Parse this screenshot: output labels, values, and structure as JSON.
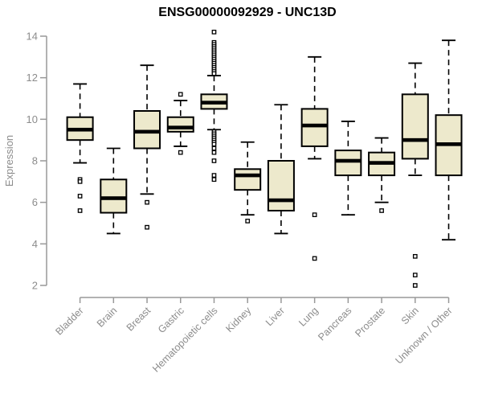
{
  "page": {
    "background": "#ffffff"
  },
  "chart_data": {
    "type": "boxplot",
    "title": "ENSG00000092929 - UNC13D",
    "ylabel": "Expression",
    "xlabel": "",
    "ylim": [
      2,
      14
    ],
    "yticks": [
      2,
      4,
      6,
      8,
      10,
      12,
      14
    ],
    "grid": false,
    "legend_position": "none",
    "whisker_line_style": "dashed",
    "outlier_marker": "open-square",
    "categories": [
      "Bladder",
      "Brain",
      "Breast",
      "Gastric",
      "Hematopoietic cells",
      "Kidney",
      "Liver",
      "Lung",
      "Pancreas",
      "Prostate",
      "Skin",
      "Unknown / Other"
    ],
    "series": [
      {
        "category": "Bladder",
        "whisker_low": 7.9,
        "q1": 9.0,
        "median": 9.5,
        "q3": 10.1,
        "whisker_high": 11.7,
        "outliers": [
          7.1,
          7.0,
          6.3,
          5.6
        ]
      },
      {
        "category": "Brain",
        "whisker_low": 4.5,
        "q1": 5.5,
        "median": 6.2,
        "q3": 7.1,
        "whisker_high": 8.6,
        "outliers": []
      },
      {
        "category": "Breast",
        "whisker_low": 6.4,
        "q1": 8.6,
        "median": 9.4,
        "q3": 10.4,
        "whisker_high": 12.6,
        "outliers": [
          6.0,
          4.8
        ]
      },
      {
        "category": "Gastric",
        "whisker_low": 8.7,
        "q1": 9.4,
        "median": 9.6,
        "q3": 10.1,
        "whisker_high": 10.9,
        "outliers": [
          11.2,
          8.4
        ]
      },
      {
        "category": "Hematopoietic cells",
        "whisker_low": 9.5,
        "q1": 10.5,
        "median": 10.8,
        "q3": 11.2,
        "whisker_high": 12.1,
        "outliers": [
          14.2,
          13.7,
          13.6,
          13.5,
          13.4,
          13.3,
          13.2,
          13.1,
          13.0,
          12.9,
          12.8,
          12.7,
          12.6,
          12.5,
          12.4,
          12.3,
          12.2,
          9.4,
          9.3,
          9.2,
          9.1,
          9.0,
          8.9,
          8.8,
          8.6,
          8.4,
          8.0,
          7.3,
          7.1
        ]
      },
      {
        "category": "Kidney",
        "whisker_low": 5.4,
        "q1": 6.6,
        "median": 7.3,
        "q3": 7.6,
        "whisker_high": 8.9,
        "outliers": [
          5.1
        ]
      },
      {
        "category": "Liver",
        "whisker_low": 4.5,
        "q1": 5.6,
        "median": 6.1,
        "q3": 8.0,
        "whisker_high": 10.7,
        "outliers": []
      },
      {
        "category": "Lung",
        "whisker_low": 8.1,
        "q1": 8.7,
        "median": 9.7,
        "q3": 10.5,
        "whisker_high": 13.0,
        "outliers": [
          5.4,
          3.3
        ]
      },
      {
        "category": "Pancreas",
        "whisker_low": 5.4,
        "q1": 7.3,
        "median": 8.0,
        "q3": 8.5,
        "whisker_high": 9.9,
        "outliers": []
      },
      {
        "category": "Prostate",
        "whisker_low": 6.0,
        "q1": 7.3,
        "median": 7.9,
        "q3": 8.4,
        "whisker_high": 9.1,
        "outliers": [
          5.6
        ]
      },
      {
        "category": "Skin",
        "whisker_low": 7.3,
        "q1": 8.1,
        "median": 9.0,
        "q3": 11.2,
        "whisker_high": 12.7,
        "outliers": [
          3.4,
          2.5,
          2.0
        ]
      },
      {
        "category": "Unknown / Other",
        "whisker_low": 4.2,
        "q1": 7.3,
        "median": 8.8,
        "q3": 10.2,
        "whisker_high": 13.8,
        "outliers": []
      }
    ],
    "colors": {
      "box_fill": "#EDE9CC",
      "box_border": "#000000",
      "median": "#000000",
      "whisker": "#000000",
      "axis": "#999999",
      "tick_label": "#8C8C8C",
      "title": "#000000"
    }
  }
}
